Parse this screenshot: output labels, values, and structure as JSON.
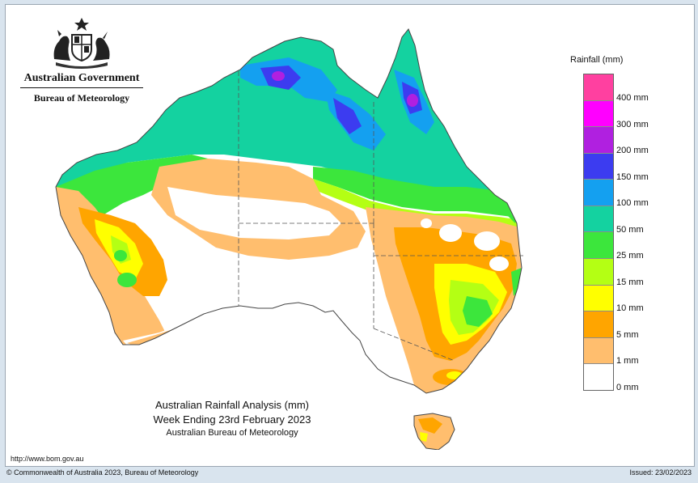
{
  "header": {
    "government": "Australian Government",
    "bureau": "Bureau of Meteorology",
    "crest_icon": "commonwealth-coat-of-arms"
  },
  "legend": {
    "title": "Rainfall (mm)",
    "levels": [
      {
        "label": "400 mm",
        "color": "#ff40a0"
      },
      {
        "label": "300 mm",
        "color": "#ff00ff"
      },
      {
        "label": "200 mm",
        "color": "#b020e0"
      },
      {
        "label": "150 mm",
        "color": "#3c3cf0"
      },
      {
        "label": "100 mm",
        "color": "#14a0f0"
      },
      {
        "label": "50 mm",
        "color": "#14d2a0"
      },
      {
        "label": "25 mm",
        "color": "#3ce63c"
      },
      {
        "label": "15 mm",
        "color": "#b4ff14"
      },
      {
        "label": "10 mm",
        "color": "#ffff00"
      },
      {
        "label": "5 mm",
        "color": "#ffa500"
      },
      {
        "label": "1 mm",
        "color": "#ffbe6e"
      },
      {
        "label": "0 mm",
        "color": "#ffffff"
      }
    ]
  },
  "caption": {
    "title": "Australian Rainfall Analysis (mm)",
    "week": "Week Ending 23rd February 2023",
    "source": "Australian Bureau of Meteorology"
  },
  "url": "http://www.bom.gov.au",
  "footer": {
    "copyright": "© Commonwealth of Australia 2023, Bureau of Meteorology",
    "issued": "Issued: 23/02/2023"
  }
}
